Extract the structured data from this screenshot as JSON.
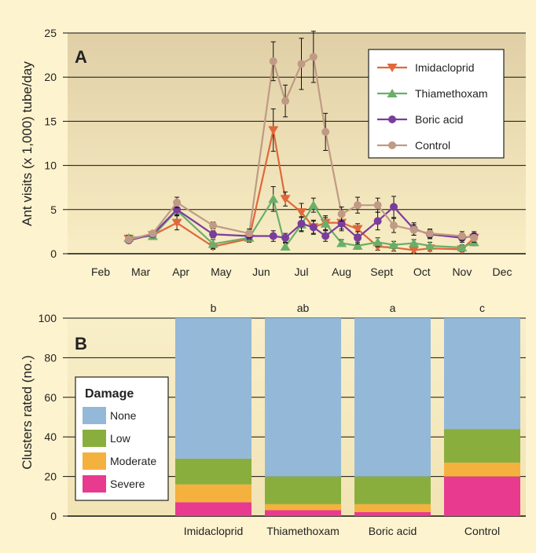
{
  "chart_data": [
    {
      "type": "line",
      "panel_label": "A",
      "ylabel": "Ant visits (x 1,000) tube/day",
      "xlabel": "",
      "ylim": [
        0,
        25
      ],
      "yticks": [
        "0",
        "5",
        "10",
        "15",
        "20",
        "25"
      ],
      "month_ticks": [
        "Feb",
        "Mar",
        "Apr",
        "May",
        "Jun",
        "Jul",
        "Aug",
        "Sept",
        "Oct",
        "Nov",
        "Dec"
      ],
      "legend_position": "top-right",
      "grid": true,
      "series": [
        {
          "name": "Imidacloprid",
          "color": "#e0683a",
          "marker": "triangle-down",
          "x": [
            1.7,
            2.3,
            2.9,
            3.8,
            4.7,
            5.3,
            5.6,
            6.0,
            6.3,
            6.6,
            7.0,
            7.4,
            7.9,
            8.3,
            8.8,
            9.2,
            10.0,
            10.3
          ],
          "y": [
            1.7,
            2.1,
            3.5,
            0.8,
            1.7,
            14.0,
            6.2,
            4.7,
            3.0,
            3.5,
            3.5,
            2.8,
            0.8,
            0.7,
            0.4,
            0.6,
            0.5,
            1.8
          ],
          "err": [
            0.3,
            0.3,
            0.8,
            0.3,
            0.4,
            2.4,
            0.8,
            1.0,
            0.8,
            0.8,
            0.7,
            0.6,
            0.4,
            0.4,
            0.3,
            0.3,
            0.3,
            0.5
          ]
        },
        {
          "name": "Thiamethoxam",
          "color": "#6aae6a",
          "marker": "triangle-up",
          "x": [
            1.7,
            2.3,
            2.9,
            3.8,
            4.7,
            5.3,
            5.6,
            6.0,
            6.3,
            6.6,
            7.0,
            7.4,
            7.9,
            8.3,
            8.8,
            9.2,
            10.0,
            10.3
          ],
          "y": [
            1.8,
            2.0,
            4.9,
            1.1,
            1.8,
            6.2,
            0.8,
            3.3,
            5.5,
            3.4,
            1.2,
            0.9,
            1.3,
            1.0,
            1.2,
            0.9,
            0.7,
            1.3
          ],
          "err": [
            0.3,
            0.3,
            0.6,
            0.5,
            0.4,
            1.4,
            0.4,
            0.8,
            0.8,
            0.7,
            0.4,
            0.4,
            0.5,
            0.4,
            0.4,
            0.4,
            0.3,
            0.4
          ]
        },
        {
          "name": "Boric acid",
          "color": "#7a3d9c",
          "marker": "circle",
          "x": [
            1.7,
            2.3,
            2.9,
            3.8,
            4.7,
            5.3,
            5.6,
            6.0,
            6.3,
            6.6,
            7.0,
            7.4,
            7.9,
            8.3,
            8.8,
            9.2,
            10.0,
            10.3
          ],
          "y": [
            1.5,
            2.2,
            5.0,
            2.2,
            2.0,
            2.0,
            1.8,
            3.4,
            3.0,
            2.0,
            3.4,
            1.8,
            3.7,
            5.3,
            2.8,
            2.2,
            1.8,
            2.0
          ],
          "err": [
            0.3,
            0.3,
            0.6,
            0.4,
            0.4,
            0.6,
            0.5,
            0.8,
            0.7,
            0.6,
            0.8,
            0.7,
            1.0,
            1.2,
            0.7,
            0.5,
            0.5,
            0.5
          ]
        },
        {
          "name": "Control",
          "color": "#c09a84",
          "marker": "circle",
          "x": [
            1.7,
            2.3,
            2.9,
            3.8,
            4.7,
            5.3,
            5.6,
            6.0,
            6.3,
            6.6,
            7.0,
            7.4,
            7.9,
            8.3,
            8.8,
            9.2,
            10.0,
            10.3
          ],
          "y": [
            1.6,
            2.3,
            5.8,
            3.2,
            2.3,
            21.8,
            17.3,
            21.5,
            22.3,
            13.8,
            4.5,
            5.5,
            5.5,
            3.2,
            2.7,
            2.3,
            2.0,
            1.8
          ],
          "err": [
            0.3,
            0.3,
            0.6,
            0.4,
            0.5,
            2.2,
            1.8,
            2.9,
            2.9,
            2.1,
            0.8,
            0.9,
            0.8,
            0.8,
            0.6,
            0.5,
            0.5,
            0.5
          ]
        }
      ]
    },
    {
      "type": "bar",
      "stacked": true,
      "panel_label": "B",
      "ylabel": "Clusters rated (no.)",
      "xlabel": "",
      "ylim": [
        0,
        100
      ],
      "yticks": [
        "0",
        "20",
        "40",
        "60",
        "80",
        "100"
      ],
      "categories": [
        "Imidacloprid",
        "Thiamethoxam",
        "Boric acid",
        "Control"
      ],
      "group_letters": [
        "b",
        "ab",
        "a",
        "c"
      ],
      "legend_title": "Damage",
      "legend_position": "left",
      "series": [
        {
          "name": "Severe",
          "color": "#e83a8f",
          "values": [
            7,
            3,
            2,
            20
          ]
        },
        {
          "name": "Moderate",
          "color": "#f5b13d",
          "values": [
            9,
            3,
            4,
            7
          ]
        },
        {
          "name": "Low",
          "color": "#8aae3e",
          "values": [
            13,
            14,
            14,
            17
          ]
        },
        {
          "name": "None",
          "color": "#94b8d8",
          "values": [
            71,
            80,
            80,
            56
          ]
        }
      ],
      "legend_order": [
        "None",
        "Low",
        "Moderate",
        "Severe"
      ]
    }
  ]
}
